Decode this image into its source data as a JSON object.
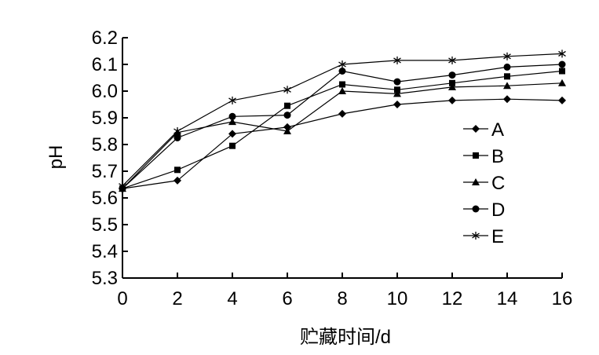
{
  "chart_data": {
    "type": "line",
    "title": "",
    "xlabel": "贮藏时间/d",
    "ylabel": "pH",
    "x": [
      0,
      2,
      4,
      6,
      8,
      10,
      12,
      14,
      16
    ],
    "xlim": [
      0,
      16
    ],
    "ylim": [
      5.3,
      6.2
    ],
    "x_ticks": [
      "0",
      "2",
      "4",
      "6",
      "8",
      "10",
      "12",
      "14",
      "16"
    ],
    "y_ticks": [
      "5.3",
      "5.4",
      "5.5",
      "5.6",
      "5.7",
      "5.8",
      "5.9",
      "6.0",
      "6.1",
      "6.2"
    ],
    "grid": false,
    "legend_position": "right",
    "series": [
      {
        "name": "A",
        "marker": "diamond",
        "values": [
          5.635,
          5.665,
          5.84,
          5.865,
          5.915,
          5.95,
          5.965,
          5.97,
          5.965
        ]
      },
      {
        "name": "B",
        "marker": "square",
        "values": [
          5.635,
          5.705,
          5.795,
          5.945,
          6.025,
          6.005,
          6.03,
          6.055,
          6.075
        ]
      },
      {
        "name": "C",
        "marker": "triangle",
        "values": [
          5.635,
          5.845,
          5.885,
          5.85,
          6.0,
          5.99,
          6.015,
          6.02,
          6.03
        ]
      },
      {
        "name": "D",
        "marker": "circle",
        "values": [
          5.635,
          5.825,
          5.905,
          5.91,
          6.075,
          6.035,
          6.06,
          6.09,
          6.1
        ]
      },
      {
        "name": "E",
        "marker": "asterisk",
        "values": [
          5.645,
          5.85,
          5.965,
          6.005,
          6.1,
          6.115,
          6.115,
          6.13,
          6.14
        ]
      }
    ]
  }
}
